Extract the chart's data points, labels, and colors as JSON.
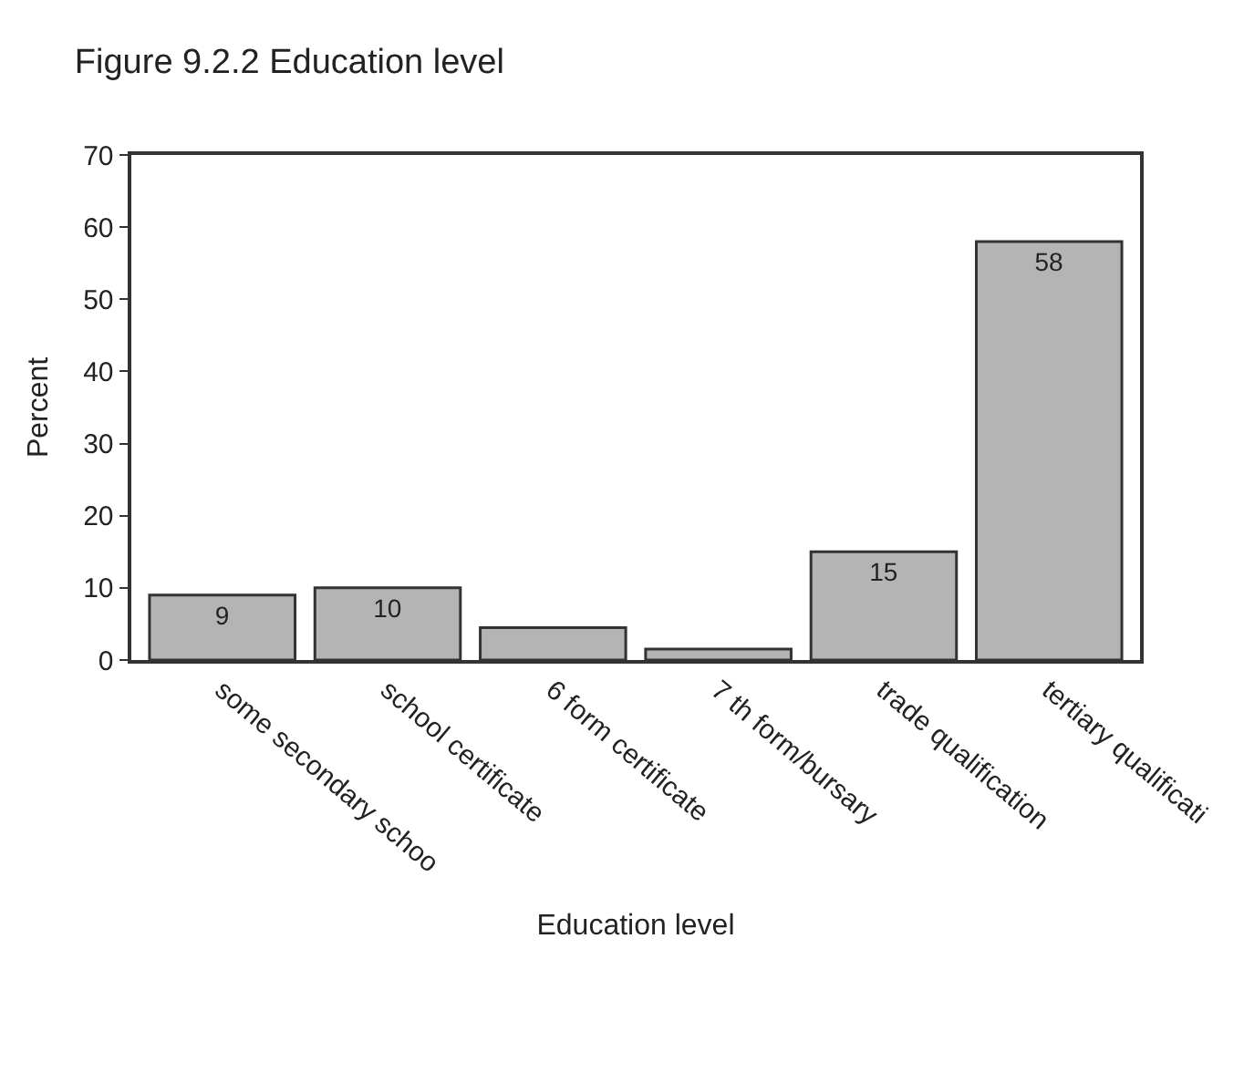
{
  "chart_data": {
    "type": "bar",
    "title": "Figure 9.2.2 Education level",
    "xlabel": "Education level",
    "ylabel": "Percent",
    "categories": [
      "some secondary schoo",
      "school certificate",
      "6 form certificate",
      "7 th form/bursary",
      "trade qualification",
      "tertiary qualificati"
    ],
    "values": [
      9,
      10,
      4.5,
      1.5,
      15,
      58
    ],
    "value_labels": [
      "9",
      "10",
      null,
      null,
      "15",
      "58"
    ],
    "color": "#b4b4b4",
    "ylim": [
      0,
      70
    ],
    "yticks": [
      0,
      10,
      20,
      30,
      40,
      50,
      60,
      70
    ],
    "grid": false,
    "legend": false
  }
}
